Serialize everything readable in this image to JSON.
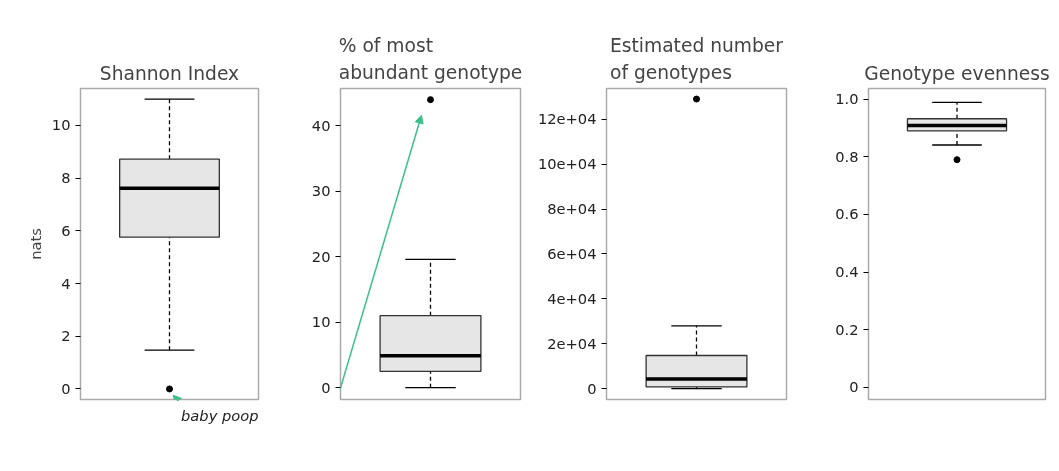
{
  "chart_data": [
    {
      "type": "box",
      "title": "Shannon Index",
      "ylabel": "nats",
      "categories": [
        null
      ],
      "boxes": [
        {
          "low": 1.47,
          "q1": 5.76,
          "median": 7.62,
          "q3": 8.72,
          "high": 11.0,
          "outliers": [
            0
          ]
        }
      ],
      "color": "#e6e6e6",
      "ylim": [
        -0.4,
        11.4
      ],
      "yticks": [
        0,
        2,
        4,
        6,
        8,
        10
      ],
      "grid": false,
      "tick_labels": "y",
      "annotations": [
        "baby poop"
      ]
    },
    {
      "type": "box",
      "title": "% of most abundant genotype",
      "categories": [
        null
      ],
      "boxes": [
        {
          "low": 0,
          "q1": 2.5,
          "median": 4.9,
          "q3": 11.0,
          "high": 19.6,
          "outliers": [
            44.0
          ]
        }
      ],
      "color": "#e6e6e6",
      "ylim": [
        -1.8,
        45.7
      ],
      "yticks": [
        0,
        10,
        20,
        30,
        40
      ],
      "grid": false,
      "tick_labels": "y"
    },
    {
      "type": "box",
      "title": "Estimated number of genotypes",
      "categories": [
        null
      ],
      "boxes": [
        {
          "low": 0,
          "q1": 800,
          "median": 4300,
          "q3": 14800,
          "high": 28000,
          "outliers": [
            129000
          ]
        }
      ],
      "color": "#e6e6e6",
      "ylim": [
        -4800,
        133700
      ],
      "yticks": [
        {
          "value": 0,
          "label": "0"
        },
        {
          "value": 20000,
          "label": "2e+04"
        },
        {
          "value": 40000,
          "label": "4e+04"
        },
        {
          "value": 60000,
          "label": "6e+04"
        },
        {
          "value": 80000,
          "label": "8e+04"
        },
        {
          "value": 100000,
          "label": "10e+04"
        },
        {
          "value": 120000,
          "label": "12e+04"
        }
      ],
      "grid": false,
      "tick_labels": "y"
    },
    {
      "type": "box",
      "title": "Genotype evenness",
      "categories": [
        null
      ],
      "boxes": [
        {
          "low": 0.841,
          "q1": 0.89,
          "median": 0.909,
          "q3": 0.932,
          "high": 0.989,
          "outliers": [
            0.79
          ]
        }
      ],
      "color": "#e6e6e6",
      "ylim": [
        -0.042,
        1.037
      ],
      "yticks": [
        0,
        0.2,
        0.4,
        0.6,
        0.8,
        {
          "value": 1.0,
          "label": "1.0"
        }
      ],
      "grid": false,
      "tick_labels": "y"
    }
  ]
}
